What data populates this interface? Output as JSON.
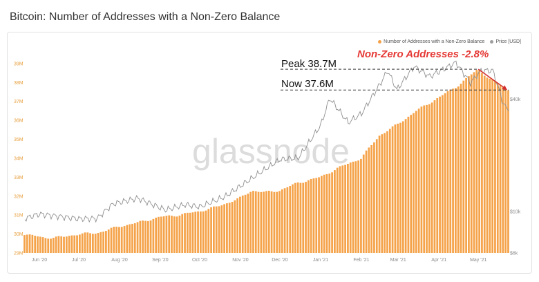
{
  "page": {
    "title": "Bitcoin: Number of Addresses with a Non-Zero Balance"
  },
  "watermark": "glassnode",
  "legend": [
    {
      "label": "Number of Addresses with a Non-Zero Balance",
      "color": "#f5a34a"
    },
    {
      "label": "Price [USD]",
      "color": "#9e9e9e"
    }
  ],
  "annotations": {
    "peak": "Peak 38.7M",
    "now": "Now 37.6M",
    "headline": "Non-Zero Addresses -2.8%"
  },
  "chart_data": {
    "type": "bar",
    "x_tick_labels": [
      "Jun '20",
      "Jul '20",
      "Aug '20",
      "Sep '20",
      "Oct '20",
      "Nov '20",
      "Dec '20",
      "Jan '21",
      "Feb '21",
      "Mar '21",
      "Apr '21",
      "May '21"
    ],
    "y_left": {
      "unit": "M",
      "ticks": [
        29,
        30,
        31,
        32,
        33,
        34,
        35,
        36,
        37,
        38,
        39
      ],
      "range": [
        29,
        39.8
      ]
    },
    "y_right": {
      "ticks": [
        "$40k",
        "$10k",
        "$6k"
      ],
      "scale": "log",
      "range": [
        6000,
        75000
      ]
    },
    "x_range": [
      "2020-05-21",
      "2021-05-24"
    ],
    "series": [
      {
        "name": "Number of Addresses with a Non-Zero Balance",
        "axis": "left",
        "style": "bars",
        "color": "#f5a34a",
        "step_days": 2,
        "anchors": [
          [
            "2020-05-21",
            30.0
          ],
          [
            "2020-06-05",
            29.8
          ],
          [
            "2020-06-20",
            29.85
          ],
          [
            "2020-07-01",
            30.0
          ],
          [
            "2020-07-15",
            30.05
          ],
          [
            "2020-08-01",
            30.4
          ],
          [
            "2020-08-15",
            30.6
          ],
          [
            "2020-09-01",
            30.9
          ],
          [
            "2020-09-15",
            31.0
          ],
          [
            "2020-10-01",
            31.2
          ],
          [
            "2020-10-15",
            31.45
          ],
          [
            "2020-11-01",
            31.9
          ],
          [
            "2020-11-10",
            32.3
          ],
          [
            "2020-11-20",
            32.2
          ],
          [
            "2020-12-01",
            32.3
          ],
          [
            "2020-12-15",
            32.7
          ],
          [
            "2021-01-01",
            33.0
          ],
          [
            "2021-01-15",
            33.5
          ],
          [
            "2021-02-01",
            34.0
          ],
          [
            "2021-02-15",
            35.2
          ],
          [
            "2021-03-01",
            35.8
          ],
          [
            "2021-03-15",
            36.5
          ],
          [
            "2021-04-01",
            37.2
          ],
          [
            "2021-04-15",
            37.8
          ],
          [
            "2021-05-01",
            38.7
          ],
          [
            "2021-05-10",
            38.2
          ],
          [
            "2021-05-24",
            37.6
          ]
        ]
      },
      {
        "name": "Price [USD]",
        "axis": "right",
        "style": "line",
        "color": "#9e9e9e",
        "points": [
          [
            "2020-05-21",
            9200
          ],
          [
            "2020-06-01",
            9700
          ],
          [
            "2020-06-15",
            9450
          ],
          [
            "2020-07-01",
            9150
          ],
          [
            "2020-07-15",
            9200
          ],
          [
            "2020-07-27",
            11000
          ],
          [
            "2020-08-15",
            11800
          ],
          [
            "2020-09-05",
            10200
          ],
          [
            "2020-09-20",
            10900
          ],
          [
            "2020-10-01",
            10600
          ],
          [
            "2020-10-20",
            12000
          ],
          [
            "2020-11-01",
            13700
          ],
          [
            "2020-11-15",
            16000
          ],
          [
            "2020-12-01",
            19000
          ],
          [
            "2020-12-15",
            19400
          ],
          [
            "2021-01-01",
            29000
          ],
          [
            "2021-01-08",
            40500
          ],
          [
            "2021-01-22",
            30000
          ],
          [
            "2021-02-01",
            33500
          ],
          [
            "2021-02-15",
            48000
          ],
          [
            "2021-02-21",
            57000
          ],
          [
            "2021-02-28",
            45000
          ],
          [
            "2021-03-13",
            60000
          ],
          [
            "2021-03-25",
            53000
          ],
          [
            "2021-04-14",
            63000
          ],
          [
            "2021-04-25",
            49000
          ],
          [
            "2021-05-03",
            57000
          ],
          [
            "2021-05-12",
            57000
          ],
          [
            "2021-05-20",
            38000
          ],
          [
            "2021-05-24",
            34500
          ]
        ]
      }
    ]
  }
}
